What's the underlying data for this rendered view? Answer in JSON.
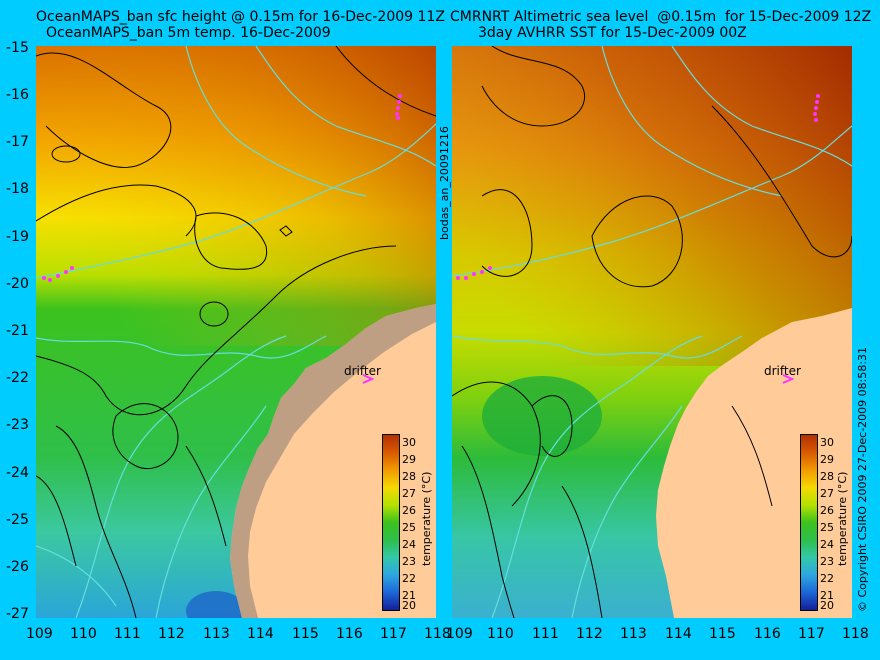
{
  "left": {
    "title_line1": "OceanMAPS_ban sfc height @ 0.15m for 16-Dec-2009 11Z",
    "title_line2": "OceanMAPS_ban 5m temp. 16-Dec-2009",
    "drifter_label": "drifter",
    "side_label": "bodas_an_20091216"
  },
  "right": {
    "title_line1": "CMRNRT Altimetric sea level  @0.15m  for 15-Dec-2009 12Z",
    "title_line2": "3day AVHRR SST for 15-Dec-2009 00Z",
    "drifter_label": "drifter",
    "side_label": "© Copyright CSIRO 2009   27-Dec-2009 08:58:31"
  },
  "y_ticks": [
    "-15",
    "-16",
    "-17",
    "-18",
    "-19",
    "-20",
    "-21",
    "-22",
    "-23",
    "-24",
    "-25",
    "-26",
    "-27"
  ],
  "x_ticks": [
    "109",
    "110",
    "111",
    "112",
    "113",
    "114",
    "115",
    "116",
    "117",
    "118"
  ],
  "colorbar": {
    "title": "temperature (°C)",
    "ticks": [
      "30",
      "29",
      "28",
      "27",
      "26",
      "25",
      "24",
      "23",
      "22",
      "21",
      "20"
    ]
  },
  "colors": {
    "background": "#00ccff",
    "land": "#ffcc99",
    "coast_contour": "#66dddd",
    "drifter": "#ff33ff"
  }
}
